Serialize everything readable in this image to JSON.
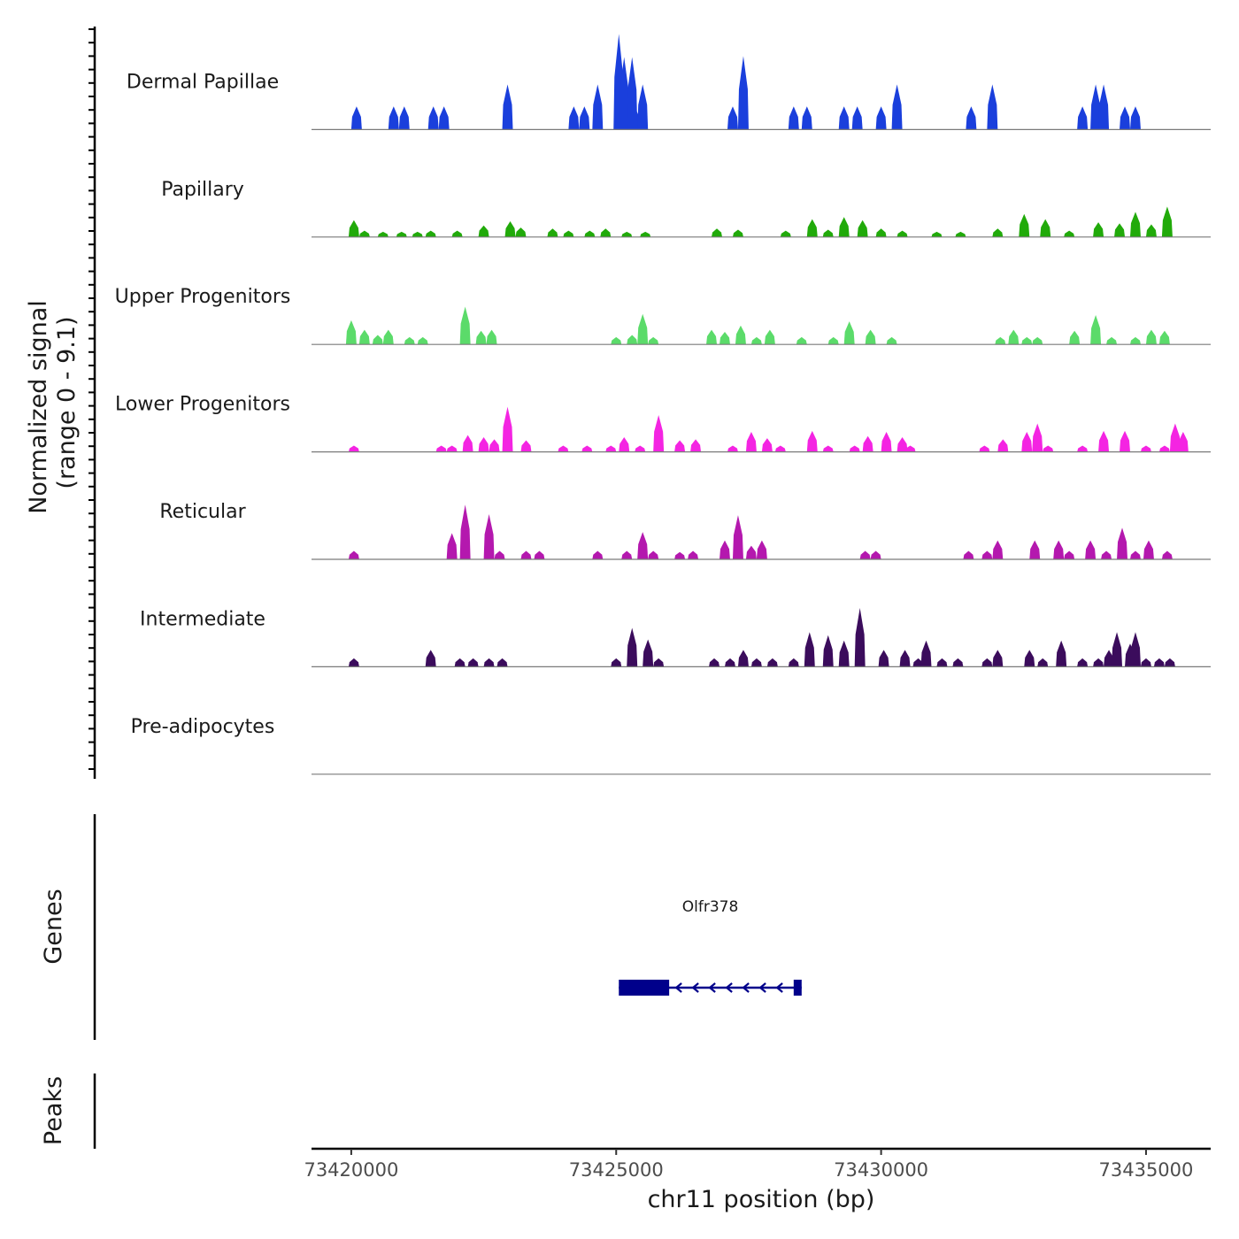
{
  "chart_data": {
    "type": "area",
    "subtype": "genome-coverage-tracks",
    "title": "",
    "ylabel": "Normalized signal",
    "ylabel_sub": "(range 0 - 9.1)",
    "ylim": [
      0,
      9.1
    ],
    "xlabel": "chr11 position (bp)",
    "xlim": [
      73419250,
      73436220
    ],
    "x_ticks": [
      73420000,
      73425000,
      73430000,
      73435000
    ],
    "x_tick_labels": [
      "73420000",
      "73425000",
      "73430000",
      "73435000"
    ],
    "bin_size_bp": 100,
    "tracks": [
      {
        "name": "Dermal Papillae",
        "color": "#1a3fdc",
        "peaks": [
          [
            73420100,
            2.2
          ],
          [
            73420800,
            2.2
          ],
          [
            73421000,
            2.2
          ],
          [
            73421550,
            2.2
          ],
          [
            73421750,
            2.2
          ],
          [
            73422950,
            4.3
          ],
          [
            73424200,
            2.2
          ],
          [
            73424400,
            2.2
          ],
          [
            73424650,
            4.3
          ],
          [
            73425050,
            9.1
          ],
          [
            73425150,
            6.9
          ],
          [
            73425350,
            2.2
          ],
          [
            73425300,
            6.9
          ],
          [
            73425500,
            4.3
          ],
          [
            73427200,
            2.2
          ],
          [
            73427400,
            7.0
          ],
          [
            73428350,
            2.2
          ],
          [
            73428600,
            2.2
          ],
          [
            73429300,
            2.2
          ],
          [
            73429550,
            2.2
          ],
          [
            73430000,
            2.2
          ],
          [
            73430300,
            4.3
          ],
          [
            73431700,
            2.2
          ],
          [
            73432100,
            4.3
          ],
          [
            73433800,
            2.2
          ],
          [
            73434050,
            4.3
          ],
          [
            73434200,
            4.3
          ],
          [
            73434600,
            2.2
          ],
          [
            73434800,
            2.2
          ]
        ]
      },
      {
        "name": "Papillary",
        "color": "#21aa0a",
        "peaks": [
          [
            73420050,
            1.6
          ],
          [
            73420250,
            0.6
          ],
          [
            73420600,
            0.5
          ],
          [
            73420950,
            0.5
          ],
          [
            73421250,
            0.5
          ],
          [
            73421500,
            0.6
          ],
          [
            73422000,
            0.6
          ],
          [
            73422500,
            1.1
          ],
          [
            73423000,
            1.5
          ],
          [
            73423200,
            0.9
          ],
          [
            73423800,
            0.8
          ],
          [
            73424100,
            0.6
          ],
          [
            73424500,
            0.6
          ],
          [
            73424800,
            0.8
          ],
          [
            73425200,
            0.5
          ],
          [
            73425550,
            0.5
          ],
          [
            73426900,
            0.8
          ],
          [
            73427300,
            0.7
          ],
          [
            73428200,
            0.6
          ],
          [
            73428700,
            1.7
          ],
          [
            73429000,
            0.7
          ],
          [
            73429300,
            1.9
          ],
          [
            73429650,
            1.6
          ],
          [
            73430000,
            0.8
          ],
          [
            73430400,
            0.6
          ],
          [
            73431050,
            0.5
          ],
          [
            73431500,
            0.5
          ],
          [
            73432200,
            0.8
          ],
          [
            73432700,
            2.2
          ],
          [
            73433100,
            1.7
          ],
          [
            73433550,
            0.6
          ],
          [
            73434100,
            1.4
          ],
          [
            73434500,
            1.3
          ],
          [
            73434800,
            2.4
          ],
          [
            73435100,
            1.2
          ],
          [
            73435400,
            2.9
          ]
        ]
      },
      {
        "name": "Upper Progenitors",
        "color": "#5bdb6a",
        "peaks": [
          [
            73420000,
            2.3
          ],
          [
            73420250,
            1.4
          ],
          [
            73420500,
            0.9
          ],
          [
            73420700,
            1.4
          ],
          [
            73421100,
            0.7
          ],
          [
            73421350,
            0.7
          ],
          [
            73422150,
            3.6
          ],
          [
            73422450,
            1.3
          ],
          [
            73422650,
            1.4
          ],
          [
            73425000,
            0.7
          ],
          [
            73425300,
            0.9
          ],
          [
            73425500,
            2.9
          ],
          [
            73425700,
            0.7
          ],
          [
            73426800,
            1.4
          ],
          [
            73427050,
            1.2
          ],
          [
            73427350,
            1.8
          ],
          [
            73427650,
            0.7
          ],
          [
            73427900,
            1.4
          ],
          [
            73428500,
            0.7
          ],
          [
            73429100,
            0.7
          ],
          [
            73429400,
            2.2
          ],
          [
            73429800,
            1.4
          ],
          [
            73430200,
            0.7
          ],
          [
            73432250,
            0.7
          ],
          [
            73432500,
            1.4
          ],
          [
            73432750,
            0.7
          ],
          [
            73432950,
            0.7
          ],
          [
            73433650,
            1.3
          ],
          [
            73434050,
            2.8
          ],
          [
            73434350,
            0.7
          ],
          [
            73434800,
            0.7
          ],
          [
            73435100,
            1.4
          ],
          [
            73435350,
            1.3
          ]
        ]
      },
      {
        "name": "Lower Progenitors",
        "color": "#f424e2",
        "peaks": [
          [
            73420050,
            0.6
          ],
          [
            73421700,
            0.6
          ],
          [
            73421900,
            0.6
          ],
          [
            73422200,
            1.6
          ],
          [
            73422500,
            1.4
          ],
          [
            73422700,
            1.2
          ],
          [
            73422950,
            4.3
          ],
          [
            73423300,
            1.1
          ],
          [
            73424000,
            0.6
          ],
          [
            73424450,
            0.6
          ],
          [
            73424900,
            0.6
          ],
          [
            73425150,
            1.4
          ],
          [
            73425450,
            0.6
          ],
          [
            73425800,
            3.5
          ],
          [
            73426200,
            1.1
          ],
          [
            73426500,
            1.2
          ],
          [
            73427200,
            0.6
          ],
          [
            73427550,
            1.9
          ],
          [
            73427850,
            1.3
          ],
          [
            73428100,
            0.6
          ],
          [
            73428700,
            2.0
          ],
          [
            73429000,
            0.6
          ],
          [
            73429500,
            0.6
          ],
          [
            73429750,
            1.5
          ],
          [
            73430100,
            1.9
          ],
          [
            73430400,
            1.4
          ],
          [
            73430550,
            0.6
          ],
          [
            73431950,
            0.6
          ],
          [
            73432300,
            1.2
          ],
          [
            73432750,
            1.9
          ],
          [
            73432950,
            2.7
          ],
          [
            73433150,
            0.6
          ],
          [
            73433800,
            0.6
          ],
          [
            73434200,
            2.0
          ],
          [
            73434600,
            2.0
          ],
          [
            73435000,
            0.6
          ],
          [
            73435350,
            0.6
          ],
          [
            73435550,
            2.7
          ],
          [
            73435700,
            1.9
          ]
        ]
      },
      {
        "name": "Reticular",
        "color": "#b418ae",
        "peaks": [
          [
            73420050,
            0.8
          ],
          [
            73421900,
            2.5
          ],
          [
            73422150,
            5.2
          ],
          [
            73422600,
            4.3
          ],
          [
            73422800,
            0.8
          ],
          [
            73423300,
            0.8
          ],
          [
            73423550,
            0.8
          ],
          [
            73424650,
            0.8
          ],
          [
            73425200,
            0.8
          ],
          [
            73425500,
            2.6
          ],
          [
            73425700,
            0.8
          ],
          [
            73426200,
            0.7
          ],
          [
            73426450,
            0.8
          ],
          [
            73427050,
            1.8
          ],
          [
            73427300,
            4.2
          ],
          [
            73427550,
            1.3
          ],
          [
            73427750,
            1.8
          ],
          [
            73429700,
            0.8
          ],
          [
            73429900,
            0.8
          ],
          [
            73431650,
            0.8
          ],
          [
            73432000,
            0.8
          ],
          [
            73432200,
            1.8
          ],
          [
            73432900,
            1.8
          ],
          [
            73433350,
            1.8
          ],
          [
            73433550,
            0.8
          ],
          [
            73433950,
            1.8
          ],
          [
            73434250,
            0.8
          ],
          [
            73434550,
            3.0
          ],
          [
            73434800,
            0.8
          ],
          [
            73435050,
            1.8
          ],
          [
            73435400,
            0.8
          ]
        ]
      },
      {
        "name": "Intermediate",
        "color": "#3b0c5c",
        "peaks": [
          [
            73420050,
            0.8
          ],
          [
            73421500,
            1.6
          ],
          [
            73422050,
            0.8
          ],
          [
            73422300,
            0.8
          ],
          [
            73422600,
            0.8
          ],
          [
            73422850,
            0.8
          ],
          [
            73425000,
            0.8
          ],
          [
            73425300,
            3.7
          ],
          [
            73425600,
            2.6
          ],
          [
            73425800,
            0.8
          ],
          [
            73426850,
            0.8
          ],
          [
            73427150,
            0.8
          ],
          [
            73427400,
            1.6
          ],
          [
            73427650,
            0.8
          ],
          [
            73427950,
            0.8
          ],
          [
            73428350,
            0.8
          ],
          [
            73428650,
            3.3
          ],
          [
            73429000,
            3.0
          ],
          [
            73429300,
            2.5
          ],
          [
            73429600,
            5.6
          ],
          [
            73430050,
            1.6
          ],
          [
            73430450,
            1.6
          ],
          [
            73430700,
            0.8
          ],
          [
            73430850,
            2.5
          ],
          [
            73431150,
            0.8
          ],
          [
            73431450,
            0.8
          ],
          [
            73432000,
            0.8
          ],
          [
            73432200,
            1.6
          ],
          [
            73432800,
            1.6
          ],
          [
            73433050,
            0.8
          ],
          [
            73433400,
            2.5
          ],
          [
            73433800,
            0.8
          ],
          [
            73434100,
            0.8
          ],
          [
            73434300,
            1.6
          ],
          [
            73434450,
            3.3
          ],
          [
            73434700,
            2.2
          ],
          [
            73434800,
            3.3
          ],
          [
            73435000,
            0.8
          ],
          [
            73435250,
            0.8
          ],
          [
            73435450,
            0.8
          ]
        ]
      },
      {
        "name": "Pre-adipocytes",
        "color": "#c4d900",
        "peaks": []
      }
    ],
    "genes_track": {
      "label": "Genes",
      "genes": [
        {
          "name": "Olfr378",
          "strand": "-",
          "start": 73425050,
          "end": 73428500,
          "exons": [
            [
              73425050,
              73426000
            ],
            [
              73428350,
              73428500
            ]
          ],
          "color": "#00008b"
        }
      ]
    },
    "peaks_track": {
      "label": "Peaks",
      "regions": []
    }
  }
}
